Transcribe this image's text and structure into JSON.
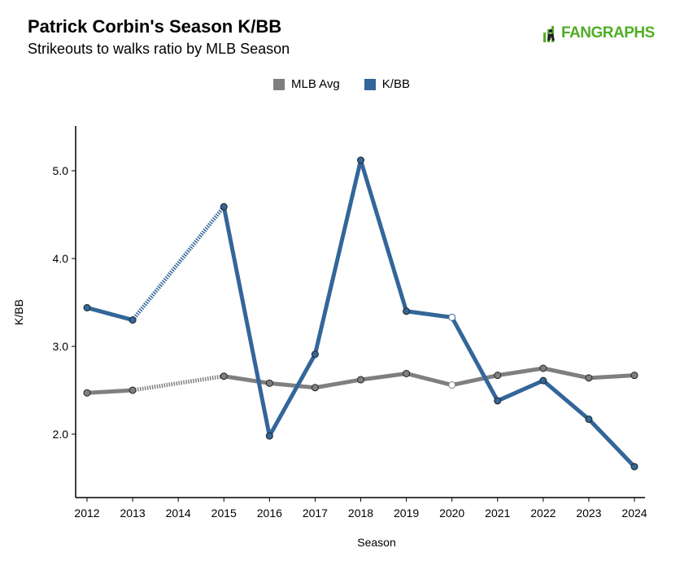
{
  "header": {
    "title": "Patrick Corbin's Season K/BB",
    "subtitle": "Strikeouts to walks ratio by MLB Season",
    "brand": "FANGRAPHS"
  },
  "chart_data": {
    "type": "line",
    "xlabel": "Season",
    "ylabel": "K/BB",
    "x": [
      2012,
      2013,
      2014,
      2015,
      2016,
      2017,
      2018,
      2019,
      2020,
      2021,
      2022,
      2023,
      2024
    ],
    "xlim": [
      2012,
      2024
    ],
    "ylim": [
      1.3,
      5.5
    ],
    "yticks": [
      "2.0",
      "3.0",
      "4.0",
      "5.0"
    ],
    "legend_position": "top-center",
    "grid": false,
    "series": [
      {
        "name": "MLB Avg",
        "color": "#7f7f7f",
        "values": [
          2.47,
          2.5,
          null,
          2.66,
          2.58,
          2.53,
          2.62,
          2.69,
          2.56,
          2.67,
          2.75,
          2.64,
          2.67
        ],
        "missing_x": [
          2014
        ],
        "hollow_x": [
          2020
        ]
      },
      {
        "name": "K/BB",
        "color": "#336699",
        "values": [
          3.44,
          3.3,
          null,
          4.59,
          1.98,
          2.91,
          5.12,
          3.4,
          3.33,
          2.38,
          2.61,
          2.17,
          1.63
        ],
        "missing_x": [
          2014
        ],
        "hollow_x": [
          2020
        ]
      }
    ]
  }
}
